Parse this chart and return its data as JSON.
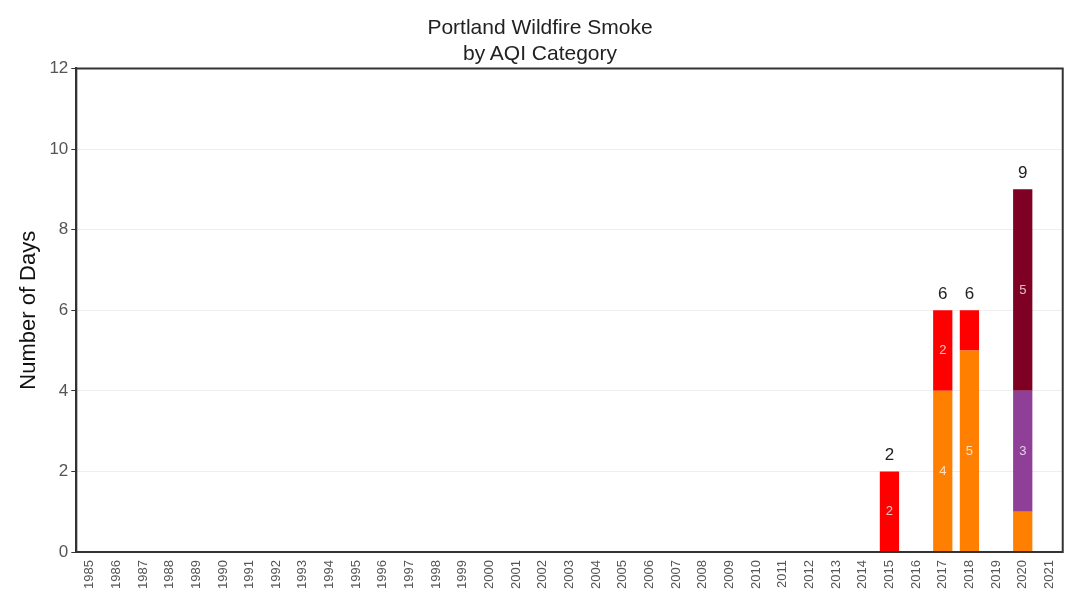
{
  "chart_data": {
    "type": "bar",
    "title": "Portland Wildfire Smoke\nby AQI Category",
    "ylabel": "Number of Days",
    "stacked": true,
    "categories": [
      "1985",
      "1986",
      "1987",
      "1988",
      "1989",
      "1990",
      "1991",
      "1992",
      "1993",
      "1994",
      "1995",
      "1996",
      "1997",
      "1998",
      "1999",
      "2000",
      "2001",
      "2002",
      "2003",
      "2004",
      "2005",
      "2006",
      "2007",
      "2008",
      "2009",
      "2010",
      "2011",
      "2012",
      "2013",
      "2014",
      "2015",
      "2016",
      "2017",
      "2018",
      "2019",
      "2020",
      "2021"
    ],
    "series": [
      {
        "color": "#ff8000",
        "values": [
          0,
          0,
          0,
          0,
          0,
          0,
          0,
          0,
          0,
          0,
          0,
          0,
          0,
          0,
          0,
          0,
          0,
          0,
          0,
          0,
          0,
          0,
          0,
          0,
          0,
          0,
          0,
          0,
          0,
          0,
          0,
          0,
          4,
          5,
          0,
          1,
          0
        ],
        "value_labels": [
          null,
          null,
          null,
          null,
          null,
          null,
          null,
          null,
          null,
          null,
          null,
          null,
          null,
          null,
          null,
          null,
          null,
          null,
          null,
          null,
          null,
          null,
          null,
          null,
          null,
          null,
          null,
          null,
          null,
          null,
          null,
          null,
          "4",
          "5",
          null,
          null,
          null
        ]
      },
      {
        "color": "#ff0000",
        "values": [
          0,
          0,
          0,
          0,
          0,
          0,
          0,
          0,
          0,
          0,
          0,
          0,
          0,
          0,
          0,
          0,
          0,
          0,
          0,
          0,
          0,
          0,
          0,
          0,
          0,
          0,
          0,
          0,
          0,
          0,
          2,
          0,
          2,
          1,
          0,
          0,
          0
        ],
        "value_labels": [
          null,
          null,
          null,
          null,
          null,
          null,
          null,
          null,
          null,
          null,
          null,
          null,
          null,
          null,
          null,
          null,
          null,
          null,
          null,
          null,
          null,
          null,
          null,
          null,
          null,
          null,
          null,
          null,
          null,
          null,
          "2",
          null,
          "2",
          null,
          null,
          null,
          null
        ]
      },
      {
        "color": "#8f3f97",
        "values": [
          0,
          0,
          0,
          0,
          0,
          0,
          0,
          0,
          0,
          0,
          0,
          0,
          0,
          0,
          0,
          0,
          0,
          0,
          0,
          0,
          0,
          0,
          0,
          0,
          0,
          0,
          0,
          0,
          0,
          0,
          0,
          0,
          0,
          0,
          0,
          3,
          0
        ],
        "value_labels": [
          null,
          null,
          null,
          null,
          null,
          null,
          null,
          null,
          null,
          null,
          null,
          null,
          null,
          null,
          null,
          null,
          null,
          null,
          null,
          null,
          null,
          null,
          null,
          null,
          null,
          null,
          null,
          null,
          null,
          null,
          null,
          null,
          null,
          null,
          null,
          "3",
          null
        ]
      },
      {
        "color": "#7e0023",
        "values": [
          0,
          0,
          0,
          0,
          0,
          0,
          0,
          0,
          0,
          0,
          0,
          0,
          0,
          0,
          0,
          0,
          0,
          0,
          0,
          0,
          0,
          0,
          0,
          0,
          0,
          0,
          0,
          0,
          0,
          0,
          0,
          0,
          0,
          0,
          0,
          5,
          0
        ],
        "value_labels": [
          null,
          null,
          null,
          null,
          null,
          null,
          null,
          null,
          null,
          null,
          null,
          null,
          null,
          null,
          null,
          null,
          null,
          null,
          null,
          null,
          null,
          null,
          null,
          null,
          null,
          null,
          null,
          null,
          null,
          null,
          null,
          null,
          null,
          null,
          null,
          "5",
          null
        ]
      }
    ],
    "totals": [
      null,
      null,
      null,
      null,
      null,
      null,
      null,
      null,
      null,
      null,
      null,
      null,
      null,
      null,
      null,
      null,
      null,
      null,
      null,
      null,
      null,
      null,
      null,
      null,
      null,
      null,
      null,
      null,
      null,
      null,
      "2",
      null,
      "6",
      "6",
      null,
      "9",
      null
    ],
    "ylim": [
      0,
      12
    ],
    "yticks": [
      0,
      2,
      4,
      6,
      8,
      10,
      12
    ],
    "grid": "y",
    "legend": false
  }
}
